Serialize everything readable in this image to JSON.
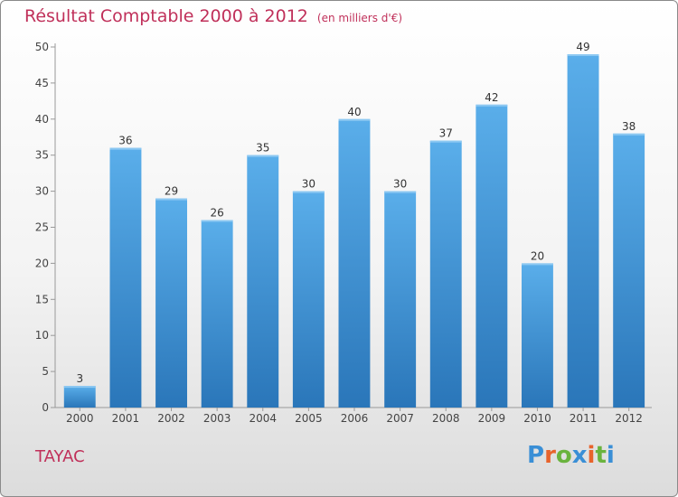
{
  "header": {
    "title": "Résultat Comptable 2000 à 2012",
    "subtitle": "(en milliers d'€)"
  },
  "footer": {
    "commune": "TAYAC",
    "logo_text": "Proxiti",
    "logo_colors": [
      "#3a8fd6",
      "#e8632b",
      "#6ab33e",
      "#3a8fd6",
      "#e8632b",
      "#6ab33e",
      "#3a8fd6"
    ]
  },
  "colors": {
    "bar_top": "#5aaeea",
    "bar_bottom": "#2a76b9",
    "title": "#c0305a"
  },
  "chart_data": {
    "type": "bar",
    "title": "Résultat Comptable 2000 à 2012",
    "subtitle": "(en milliers d'€)",
    "xlabel": "",
    "ylabel": "",
    "categories": [
      "2000",
      "2001",
      "2002",
      "2003",
      "2004",
      "2005",
      "2006",
      "2007",
      "2008",
      "2009",
      "2010",
      "2011",
      "2012"
    ],
    "values": [
      3,
      36,
      29,
      26,
      35,
      30,
      40,
      30,
      37,
      42,
      20,
      49,
      38
    ],
    "ylim": [
      0,
      50
    ],
    "yticks": [
      0,
      5,
      10,
      15,
      20,
      25,
      30,
      35,
      40,
      45,
      50
    ],
    "grid": false,
    "legend": "none"
  }
}
